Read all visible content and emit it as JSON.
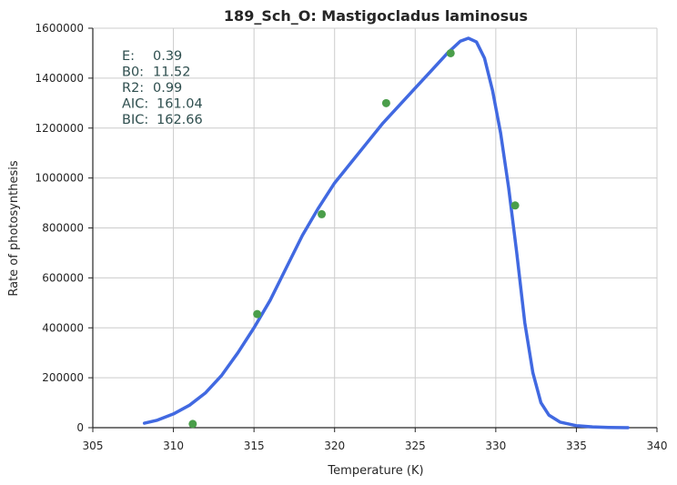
{
  "chart_data": {
    "type": "scatter",
    "title": "189_Sch_O: Mastigocladus laminosus",
    "xlabel": "Temperature (K)",
    "ylabel": "Rate of photosynthesis",
    "xlim": [
      305,
      340
    ],
    "ylim": [
      0,
      1600000
    ],
    "xticks": [
      "305",
      "310",
      "315",
      "320",
      "325",
      "330",
      "335",
      "340"
    ],
    "yticks": [
      "0",
      "200000",
      "400000",
      "600000",
      "800000",
      "1000000",
      "1200000",
      "1400000",
      "1600000"
    ],
    "grid": true,
    "colors": {
      "fit": "#4169e1",
      "points": "#4a9e4a",
      "annotation": "#2f4f4f"
    },
    "points": {
      "x": [
        311.2,
        315.2,
        319.2,
        323.2,
        327.2,
        331.2
      ],
      "y": [
        15000,
        455000,
        855000,
        1300000,
        1500000,
        890000
      ]
    },
    "fit": {
      "x": [
        308.2,
        309,
        310,
        311,
        312,
        313,
        314,
        315,
        316,
        317,
        318,
        319,
        320,
        321,
        322,
        323,
        324,
        325,
        326,
        327,
        327.8,
        328.3,
        328.8,
        329.3,
        329.8,
        330.3,
        330.8,
        331.3,
        331.8,
        332.3,
        332.8,
        333.3,
        334,
        335,
        336,
        337,
        338.2
      ],
      "y": [
        18000,
        30000,
        55000,
        90000,
        140000,
        210000,
        300000,
        400000,
        510000,
        640000,
        770000,
        880000,
        980000,
        1060000,
        1140000,
        1220000,
        1290000,
        1360000,
        1430000,
        1500000,
        1548000,
        1560000,
        1545000,
        1480000,
        1350000,
        1180000,
        960000,
        700000,
        420000,
        220000,
        100000,
        50000,
        22000,
        8000,
        3000,
        1000,
        0
      ]
    },
    "annotations": [
      {
        "label": "E:",
        "value": "0.39"
      },
      {
        "label": "B0:",
        "value": "11.52"
      },
      {
        "label": "R2:",
        "value": "0.99"
      },
      {
        "label": "AIC:",
        "value": "161.04"
      },
      {
        "label": "BIC:",
        "value": "162.66"
      }
    ]
  }
}
